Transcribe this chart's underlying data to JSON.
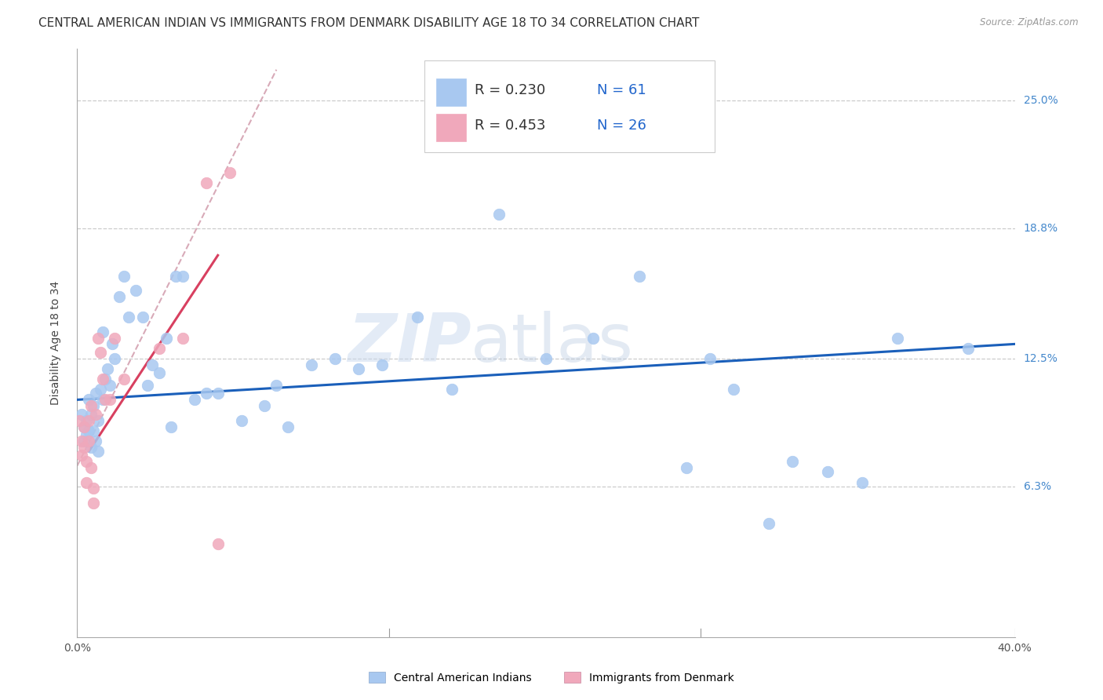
{
  "title": "CENTRAL AMERICAN INDIAN VS IMMIGRANTS FROM DENMARK DISABILITY AGE 18 TO 34 CORRELATION CHART",
  "source": "Source: ZipAtlas.com",
  "ylabel": "Disability Age 18 to 34",
  "ytick_values": [
    6.3,
    12.5,
    18.8,
    25.0
  ],
  "ytick_labels": [
    "6.3%",
    "12.5%",
    "18.8%",
    "25.0%"
  ],
  "xlim": [
    0.0,
    40.0
  ],
  "ylim": [
    -1.0,
    27.5
  ],
  "legend_blue_r": "R = 0.230",
  "legend_blue_n": "N = 61",
  "legend_pink_r": "R = 0.453",
  "legend_pink_n": "N = 26",
  "legend_label_blue": "Central American Indians",
  "legend_label_pink": "Immigrants from Denmark",
  "watermark_left": "ZIP",
  "watermark_right": "atlas",
  "blue_x": [
    0.2,
    0.3,
    0.3,
    0.4,
    0.4,
    0.5,
    0.5,
    0.6,
    0.6,
    0.7,
    0.7,
    0.8,
    0.8,
    0.9,
    0.9,
    1.0,
    1.1,
    1.1,
    1.2,
    1.3,
    1.4,
    1.5,
    1.6,
    1.8,
    2.0,
    2.2,
    2.5,
    2.8,
    3.0,
    3.2,
    3.5,
    3.8,
    4.0,
    4.2,
    4.5,
    5.0,
    5.5,
    6.0,
    7.0,
    8.0,
    8.5,
    9.0,
    10.0,
    11.0,
    12.0,
    13.0,
    14.5,
    16.0,
    18.0,
    20.0,
    22.0,
    24.0,
    26.0,
    27.0,
    28.0,
    29.5,
    30.5,
    32.0,
    33.5,
    35.0,
    38.0
  ],
  "blue_y": [
    9.8,
    9.2,
    8.5,
    8.8,
    9.5,
    10.5,
    9.0,
    9.8,
    8.2,
    10.2,
    9.0,
    10.8,
    8.5,
    9.5,
    8.0,
    11.0,
    13.8,
    10.5,
    11.5,
    12.0,
    11.2,
    13.2,
    12.5,
    15.5,
    16.5,
    14.5,
    15.8,
    14.5,
    11.2,
    12.2,
    11.8,
    13.5,
    9.2,
    16.5,
    16.5,
    10.5,
    10.8,
    10.8,
    9.5,
    10.2,
    11.2,
    9.2,
    12.2,
    12.5,
    12.0,
    12.2,
    14.5,
    11.0,
    19.5,
    12.5,
    13.5,
    16.5,
    7.2,
    12.5,
    11.0,
    4.5,
    7.5,
    7.0,
    6.5,
    13.5,
    13.0
  ],
  "pink_x": [
    0.1,
    0.2,
    0.2,
    0.3,
    0.3,
    0.4,
    0.4,
    0.5,
    0.5,
    0.6,
    0.6,
    0.7,
    0.7,
    0.8,
    0.9,
    1.0,
    1.1,
    1.2,
    1.4,
    1.6,
    2.0,
    3.5,
    4.5,
    5.5,
    6.0,
    6.5
  ],
  "pink_y": [
    9.5,
    8.5,
    7.8,
    8.2,
    9.2,
    7.5,
    6.5,
    9.5,
    8.5,
    10.2,
    7.2,
    6.2,
    5.5,
    9.8,
    13.5,
    12.8,
    11.5,
    10.5,
    10.5,
    13.5,
    11.5,
    13.0,
    13.5,
    21.0,
    3.5,
    21.5
  ],
  "blue_reg_x0": 0.0,
  "blue_reg_y0": 10.5,
  "blue_reg_x1": 40.0,
  "blue_reg_y1": 13.2,
  "pink_reg_x0": 0.5,
  "pink_reg_y0": 8.0,
  "pink_reg_x1": 6.0,
  "pink_reg_y1": 17.5,
  "pink_dash_x0": 0.0,
  "pink_dash_y0": 7.3,
  "pink_dash_x1": 8.5,
  "pink_dash_y1": 26.5,
  "scatter_blue": "#a8c8f0",
  "scatter_pink": "#f0a8bb",
  "line_blue": "#1a5fba",
  "line_pink": "#d84060",
  "dash_pink": "#d8aab8",
  "grid_color": "#cccccc",
  "bg_color": "#ffffff",
  "title_fs": 11,
  "label_fs": 10,
  "tick_fs": 10,
  "legend_fs": 13,
  "ms": 110
}
